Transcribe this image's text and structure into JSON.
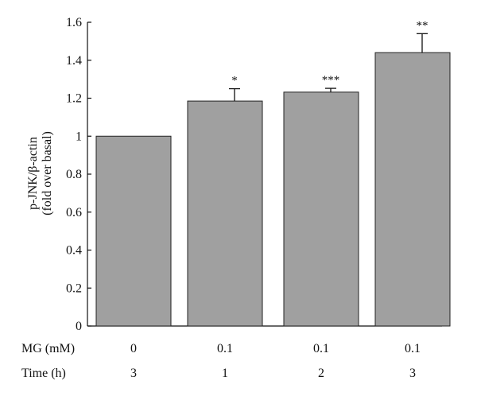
{
  "chart_data": {
    "type": "bar",
    "title": "",
    "ylabel_line1": "p-JNK/β-actin",
    "ylabel_line2": "(fold over basal)",
    "ylim": [
      0,
      1.6
    ],
    "yticks": [
      "0",
      "0.2",
      "0.4",
      "0.6",
      "0.8",
      "1",
      "1.2",
      "1.4",
      "1.6"
    ],
    "bar_color": "#a0a0a0",
    "bar_edge_color": "#222222",
    "bars": [
      {
        "value": 1.0,
        "error": 0.0,
        "significance": "",
        "mg": "0",
        "time": "3"
      },
      {
        "value": 1.185,
        "error": 0.065,
        "significance": "*",
        "mg": "0.1",
        "time": "1"
      },
      {
        "value": 1.232,
        "error": 0.02,
        "significance": "***",
        "mg": "0.1",
        "time": "2"
      },
      {
        "value": 1.44,
        "error": 0.1,
        "significance": "**",
        "mg": "0.1",
        "time": "3"
      }
    ],
    "table_rows": [
      {
        "label": "MG (mM)",
        "key": "mg"
      },
      {
        "label": "Time (h)",
        "key": "time"
      }
    ],
    "grid": false,
    "legend": "none"
  }
}
